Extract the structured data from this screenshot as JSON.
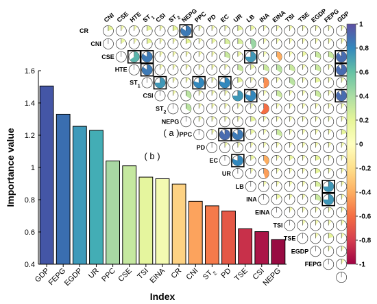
{
  "chart_data": [
    {
      "type": "bar",
      "panel_label": "( b )",
      "xlabel": "Index",
      "ylabel": "Importance value",
      "ylim": [
        0.4,
        1.6
      ],
      "yticks": [
        "0.4",
        "0.6",
        "0.8",
        "1",
        "1.2",
        "1.4",
        "1.6"
      ],
      "categories": [
        "GDP",
        "FEPG",
        "EGDP",
        "UR",
        "PPC",
        "CSE",
        "TSI",
        "EINA",
        "CR",
        "CNI",
        "ST2",
        "PD",
        "TSE",
        "CSI",
        "NEPG"
      ],
      "values": [
        1.505,
        1.33,
        1.255,
        1.23,
        1.04,
        1.01,
        0.94,
        0.93,
        0.897,
        0.79,
        0.762,
        0.73,
        0.62,
        0.602,
        0.553
      ],
      "colors": [
        "#4456a6",
        "#3a6eb0",
        "#3d9aba",
        "#43adb5",
        "#a8d8a3",
        "#c5e8a0",
        "#e5f59e",
        "#f3fab1",
        "#fdd283",
        "#fca35d",
        "#f57a4b",
        "#e45846",
        "#c8304a",
        "#ab1547",
        "#980a42"
      ]
    },
    {
      "type": "heatmap",
      "panel_label": "( a )",
      "variables": [
        "CR",
        "CNI",
        "CSE",
        "HTE",
        "ST1",
        "CSI",
        "ST2",
        "NEPG",
        "PPC",
        "PD",
        "EC",
        "UR",
        "LB",
        "INA",
        "EINA",
        "TSI",
        "TSE",
        "EGDP",
        "FEPG",
        "GDP"
      ],
      "variable_labels": {
        "CR": "CR",
        "CNI": "CNI",
        "CSE": "CSE",
        "HTE": "HTE",
        "ST1": "ST",
        "CSI": "CSI",
        "ST2": "ST",
        "NEPG": "NEPG",
        "PPC": "PPC",
        "PD": "PD",
        "EC": "EC",
        "UR": "UR",
        "LB": "LB",
        "INA": "INA",
        "EINA": "EINA",
        "TSI": "TSI",
        "TSE": "TSE",
        "EGDP": "EGDP",
        "FEPG": "FEPG",
        "GDP": "GDP"
      },
      "variable_subscripts": {
        "ST1": "1",
        "ST2": "2"
      },
      "colorbar": {
        "range": [
          -1,
          1
        ],
        "ticks": [
          "1",
          "0.8",
          "0.6",
          "0.4",
          "0.2",
          "0",
          "-0.2",
          "-0.4",
          "-0.6",
          "-0.8",
          "-1"
        ]
      },
      "correlations": [
        [
          "CNI",
          "CR",
          0.2
        ],
        [
          "CSE",
          "CR",
          0.1
        ],
        [
          "HTE",
          "CR",
          0.1
        ],
        [
          "ST1",
          "CR",
          0.2
        ],
        [
          "CSI",
          "CR",
          0.1
        ],
        [
          "ST2",
          "CR",
          0.2
        ],
        [
          "NEPG",
          "CR",
          0.85
        ],
        [
          "PPC",
          "CR",
          0.1
        ],
        [
          "PD",
          "CR",
          0.1
        ],
        [
          "EC",
          "CR",
          0.1
        ],
        [
          "UR",
          "CR",
          0.2
        ],
        [
          "LB",
          "CR",
          0.15
        ],
        [
          "INA",
          "CR",
          0.1
        ],
        [
          "EINA",
          "CR",
          0.1
        ],
        [
          "TSI",
          "CR",
          0.1
        ],
        [
          "TSE",
          "CR",
          0.1
        ],
        [
          "EGDP",
          "CR",
          0.1
        ],
        [
          "FEPG",
          "CR",
          0.1
        ],
        [
          "GDP",
          "CR",
          0.1
        ],
        [
          "CSE",
          "CNI",
          0.15
        ],
        [
          "HTE",
          "CNI",
          0.1
        ],
        [
          "ST1",
          "CNI",
          0.2
        ],
        [
          "CSI",
          "CNI",
          0.1
        ],
        [
          "ST2",
          "CNI",
          0.1
        ],
        [
          "NEPG",
          "CNI",
          0.2
        ],
        [
          "PPC",
          "CNI",
          0.1
        ],
        [
          "PD",
          "CNI",
          0.15
        ],
        [
          "EC",
          "CNI",
          0.25
        ],
        [
          "UR",
          "CNI",
          0.25
        ],
        [
          "LB",
          "CNI",
          0.45
        ],
        [
          "INA",
          "CNI",
          0.1
        ],
        [
          "EINA",
          "CNI",
          0.1
        ],
        [
          "TSI",
          "CNI",
          0.1
        ],
        [
          "TSE",
          "CNI",
          0.1
        ],
        [
          "EGDP",
          "CNI",
          0.1
        ],
        [
          "FEPG",
          "CNI",
          0.1
        ],
        [
          "GDP",
          "CNI",
          0.1
        ],
        [
          "HTE",
          "CSE",
          0.65
        ],
        [
          "ST1",
          "CSE",
          0.85
        ],
        [
          "CSI",
          "CSE",
          0.1
        ],
        [
          "ST2",
          "CSE",
          0.1
        ],
        [
          "NEPG",
          "CSE",
          0.1
        ],
        [
          "PPC",
          "CSE",
          0.1
        ],
        [
          "PD",
          "CSE",
          0.1
        ],
        [
          "EC",
          "CSE",
          0.3
        ],
        [
          "UR",
          "CSE",
          0.15
        ],
        [
          "LB",
          "CSE",
          0.75
        ],
        [
          "INA",
          "CSE",
          0.1
        ],
        [
          "EINA",
          "CSE",
          -0.4
        ],
        [
          "TSI",
          "CSE",
          0.1
        ],
        [
          "TSE",
          "CSE",
          0.15
        ],
        [
          "EGDP",
          "CSE",
          0.3
        ],
        [
          "FEPG",
          "CSE",
          0.3
        ],
        [
          "GDP",
          "CSE",
          0.9
        ],
        [
          "ST1",
          "HTE",
          0.85
        ],
        [
          "CSI",
          "HTE",
          0.1
        ],
        [
          "ST2",
          "HTE",
          0.1
        ],
        [
          "NEPG",
          "HTE",
          0.1
        ],
        [
          "PPC",
          "HTE",
          0.1
        ],
        [
          "PD",
          "HTE",
          0.1
        ],
        [
          "EC",
          "HTE",
          0.1
        ],
        [
          "UR",
          "HTE",
          0.3
        ],
        [
          "LB",
          "HTE",
          0.15
        ],
        [
          "INA",
          "HTE",
          0.3
        ],
        [
          "EINA",
          "HTE",
          0.35
        ],
        [
          "TSI",
          "HTE",
          0.3
        ],
        [
          "TSE",
          "HTE",
          0.1
        ],
        [
          "EGDP",
          "HTE",
          0.3
        ],
        [
          "FEPG",
          "HTE",
          0.1
        ],
        [
          "GDP",
          "HTE",
          0.9
        ],
        [
          "CSI",
          "ST1",
          0.75
        ],
        [
          "ST2",
          "ST1",
          0.1
        ],
        [
          "NEPG",
          "ST1",
          0.1
        ],
        [
          "PPC",
          "ST1",
          0.8
        ],
        [
          "PD",
          "ST1",
          0.1
        ],
        [
          "EC",
          "ST1",
          0.8
        ],
        [
          "UR",
          "ST1",
          0.2
        ],
        [
          "LB",
          "ST1",
          0.1
        ],
        [
          "INA",
          "ST1",
          -0.5
        ],
        [
          "EINA",
          "ST1",
          0.1
        ],
        [
          "TSI",
          "ST1",
          0.35
        ],
        [
          "TSE",
          "ST1",
          0.1
        ],
        [
          "EGDP",
          "ST1",
          0.2
        ],
        [
          "FEPG",
          "ST1",
          0.1
        ],
        [
          "GDP",
          "ST1",
          0.1
        ],
        [
          "ST2",
          "CSI",
          0.1
        ],
        [
          "NEPG",
          "CSI",
          0.35
        ],
        [
          "PPC",
          "CSI",
          0.1
        ],
        [
          "PD",
          "CSI",
          0.1
        ],
        [
          "EC",
          "CSI",
          0.1
        ],
        [
          "UR",
          "CSI",
          0.75
        ],
        [
          "LB",
          "CSI",
          0.8
        ],
        [
          "INA",
          "CSI",
          0.1
        ],
        [
          "EINA",
          "CSI",
          0.3
        ],
        [
          "TSI",
          "CSI",
          0.1
        ],
        [
          "TSE",
          "CSI",
          0.1
        ],
        [
          "EGDP",
          "CSI",
          0.3
        ],
        [
          "FEPG",
          "CSI",
          0.1
        ],
        [
          "GDP",
          "CSI",
          0.9
        ],
        [
          "NEPG",
          "ST2",
          0.35
        ],
        [
          "PPC",
          "ST2",
          0.1
        ],
        [
          "PD",
          "ST2",
          0.1
        ],
        [
          "EC",
          "ST2",
          0.1
        ],
        [
          "UR",
          "ST2",
          0.1
        ],
        [
          "LB",
          "ST2",
          0.1
        ],
        [
          "INA",
          "ST2",
          -0.6
        ],
        [
          "EINA",
          "ST2",
          0.1
        ],
        [
          "TSI",
          "ST2",
          0.1
        ],
        [
          "TSE",
          "ST2",
          0.1
        ],
        [
          "EGDP",
          "ST2",
          0.1
        ],
        [
          "FEPG",
          "ST2",
          0.1
        ],
        [
          "GDP",
          "ST2",
          0.1
        ],
        [
          "PPC",
          "NEPG",
          0.1
        ],
        [
          "PD",
          "NEPG",
          0.1
        ],
        [
          "EC",
          "NEPG",
          0.1
        ],
        [
          "UR",
          "NEPG",
          0.1
        ],
        [
          "LB",
          "NEPG",
          0.2
        ],
        [
          "INA",
          "NEPG",
          0.1
        ],
        [
          "EINA",
          "NEPG",
          0.1
        ],
        [
          "TSI",
          "NEPG",
          0.1
        ],
        [
          "TSE",
          "NEPG",
          0.1
        ],
        [
          "EGDP",
          "NEPG",
          0.1
        ],
        [
          "FEPG",
          "NEPG",
          0.1
        ],
        [
          "GDP",
          "NEPG",
          0.1
        ],
        [
          "PD",
          "PPC",
          0.1
        ],
        [
          "EC",
          "PPC",
          0.9
        ],
        [
          "UR",
          "PPC",
          0.85
        ],
        [
          "LB",
          "PPC",
          0.15
        ],
        [
          "INA",
          "PPC",
          0.1
        ],
        [
          "EINA",
          "PPC",
          0.3
        ],
        [
          "TSI",
          "PPC",
          0.1
        ],
        [
          "TSE",
          "PPC",
          0.1
        ],
        [
          "EGDP",
          "PPC",
          0.1
        ],
        [
          "FEPG",
          "PPC",
          0.1
        ],
        [
          "GDP",
          "PPC",
          0.2
        ],
        [
          "EC",
          "PD",
          0.1
        ],
        [
          "UR",
          "PD",
          0.1
        ],
        [
          "LB",
          "PD",
          0.1
        ],
        [
          "INA",
          "PD",
          0.1
        ],
        [
          "EINA",
          "PD",
          0.1
        ],
        [
          "TSI",
          "PD",
          0.1
        ],
        [
          "TSE",
          "PD",
          0.1
        ],
        [
          "EGDP",
          "PD",
          0.1
        ],
        [
          "FEPG",
          "PD",
          0.1
        ],
        [
          "GDP",
          "PD",
          0.1
        ],
        [
          "UR",
          "EC",
          0.8
        ],
        [
          "LB",
          "EC",
          0.15
        ],
        [
          "INA",
          "EC",
          -0.4
        ],
        [
          "EINA",
          "EC",
          0.1
        ],
        [
          "TSI",
          "EC",
          0.15
        ],
        [
          "TSE",
          "EC",
          0.1
        ],
        [
          "EGDP",
          "EC",
          0.2
        ],
        [
          "FEPG",
          "EC",
          0.1
        ],
        [
          "GDP",
          "EC",
          0.1
        ],
        [
          "LB",
          "UR",
          0.1
        ],
        [
          "INA",
          "UR",
          -0.45
        ],
        [
          "EINA",
          "UR",
          0.1
        ],
        [
          "TSI",
          "UR",
          0.1
        ],
        [
          "TSE",
          "UR",
          0.1
        ],
        [
          "EGDP",
          "UR",
          0.2
        ],
        [
          "FEPG",
          "UR",
          0.1
        ],
        [
          "GDP",
          "UR",
          0.1
        ],
        [
          "INA",
          "LB",
          0.1
        ],
        [
          "EINA",
          "LB",
          0.1
        ],
        [
          "TSI",
          "LB",
          0.1
        ],
        [
          "TSE",
          "LB",
          0.1
        ],
        [
          "EGDP",
          "LB",
          0.25
        ],
        [
          "FEPG",
          "LB",
          0.75
        ],
        [
          "GDP",
          "LB",
          0.1
        ],
        [
          "EINA",
          "INA",
          0.15
        ],
        [
          "TSI",
          "INA",
          0.1
        ],
        [
          "TSE",
          "INA",
          0.1
        ],
        [
          "EGDP",
          "INA",
          0.3
        ],
        [
          "FEPG",
          "INA",
          0.75
        ],
        [
          "GDP",
          "INA",
          0.1
        ],
        [
          "TSI",
          "EINA",
          0.1
        ],
        [
          "TSE",
          "EINA",
          0.1
        ],
        [
          "EGDP",
          "EINA",
          0.1
        ],
        [
          "FEPG",
          "EINA",
          0.1
        ],
        [
          "GDP",
          "EINA",
          0.1
        ],
        [
          "TSE",
          "TSI",
          0.1
        ],
        [
          "EGDP",
          "TSI",
          0.1
        ],
        [
          "FEPG",
          "TSI",
          0.1
        ],
        [
          "GDP",
          "TSI",
          0.1
        ],
        [
          "EGDP",
          "TSE",
          0.1
        ],
        [
          "FEPG",
          "TSE",
          0.2
        ],
        [
          "GDP",
          "TSE",
          0.1
        ],
        [
          "FEPG",
          "EGDP",
          0.1
        ],
        [
          "GDP",
          "EGDP",
          0.1
        ],
        [
          "GDP",
          "FEPG",
          0.1
        ]
      ],
      "highlighted_pairs": [
        [
          "NEPG",
          "CR"
        ],
        [
          "HTE",
          "CSE"
        ],
        [
          "ST1",
          "CSE"
        ],
        [
          "LB",
          "CSE"
        ],
        [
          "GDP",
          "CSE"
        ],
        [
          "ST1",
          "HTE"
        ],
        [
          "GDP",
          "HTE"
        ],
        [
          "CSI",
          "ST1"
        ],
        [
          "PPC",
          "ST1"
        ],
        [
          "EC",
          "ST1"
        ],
        [
          "LB",
          "CSI"
        ],
        [
          "GDP",
          "CSI"
        ],
        [
          "EC",
          "PPC"
        ],
        [
          "UR",
          "PPC"
        ],
        [
          "UR",
          "EC"
        ],
        [
          "FEPG",
          "LB"
        ],
        [
          "FEPG",
          "INA"
        ]
      ]
    }
  ]
}
